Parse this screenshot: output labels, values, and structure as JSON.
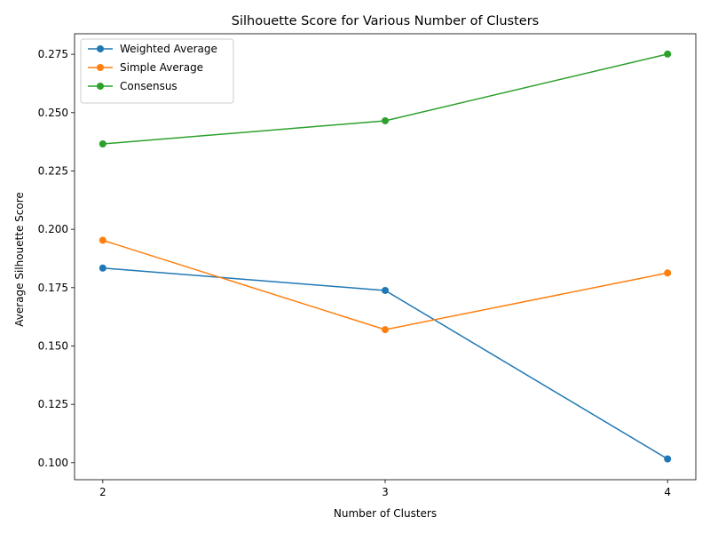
{
  "chart_data": {
    "type": "line",
    "title": "Silhouette Score for Various Number of Clusters",
    "xlabel": "Number of Clusters",
    "ylabel": "Average Silhouette Score",
    "x": [
      2,
      3,
      4
    ],
    "xlim": [
      1.9,
      4.1
    ],
    "ylim": [
      0.0927,
      0.2838
    ],
    "yticks": [
      "0.100",
      "0.125",
      "0.150",
      "0.175",
      "0.200",
      "0.225",
      "0.250",
      "0.275"
    ],
    "ytick_values": [
      0.1,
      0.125,
      0.15,
      0.175,
      0.2,
      0.225,
      0.25,
      0.275
    ],
    "xticks": [
      "2",
      "3",
      "4"
    ],
    "grid": false,
    "legend_position": "top-left",
    "series": [
      {
        "name": "Weighted Average",
        "values": [
          0.1834,
          0.1738,
          0.1016
        ],
        "color": "#1f77b4"
      },
      {
        "name": "Simple Average",
        "values": [
          0.1953,
          0.157,
          0.1813
        ],
        "color": "#ff7f0e"
      },
      {
        "name": "Consensus",
        "values": [
          0.2366,
          0.2465,
          0.2751
        ],
        "color": "#2ca02c"
      }
    ]
  }
}
